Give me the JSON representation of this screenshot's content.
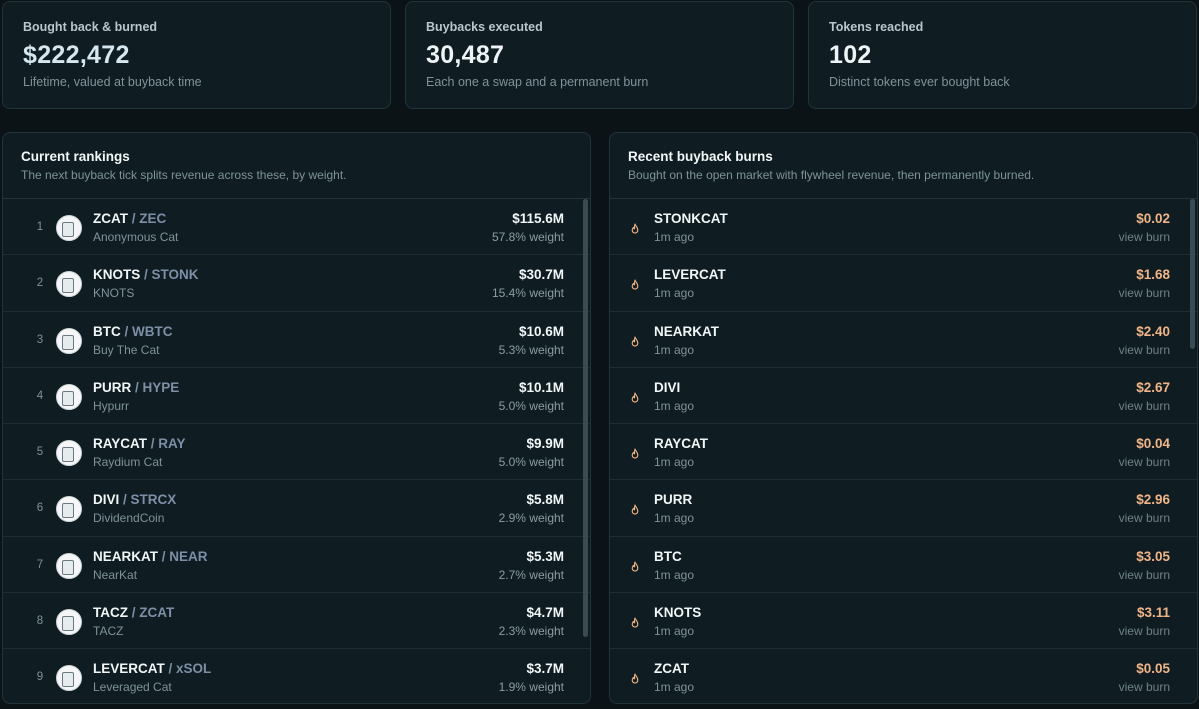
{
  "stats": [
    {
      "label": "Bought back & burned",
      "value": "$222,472",
      "sub": "Lifetime, valued at buyback time"
    },
    {
      "label": "Buybacks executed",
      "value": "30,487",
      "sub": "Each one a swap and a permanent burn"
    },
    {
      "label": "Tokens reached",
      "value": "102",
      "sub": "Distinct tokens ever bought back"
    }
  ],
  "rankings": {
    "title": "Current rankings",
    "subtitle": "The next buyback tick splits revenue across these, by weight.",
    "rows": [
      {
        "rank": "1",
        "symbol": "ZCAT",
        "pair": "/ ZEC",
        "name": "Anonymous Cat",
        "amount": "$115.6M",
        "weight": "57.8% weight"
      },
      {
        "rank": "2",
        "symbol": "KNOTS",
        "pair": "/ STONK",
        "name": "KNOTS",
        "amount": "$30.7M",
        "weight": "15.4% weight"
      },
      {
        "rank": "3",
        "symbol": "BTC",
        "pair": "/ WBTC",
        "name": "Buy The Cat",
        "amount": "$10.6M",
        "weight": "5.3% weight"
      },
      {
        "rank": "4",
        "symbol": "PURR",
        "pair": "/ HYPE",
        "name": "Hypurr",
        "amount": "$10.1M",
        "weight": "5.0% weight"
      },
      {
        "rank": "5",
        "symbol": "RAYCAT",
        "pair": "/ RAY",
        "name": "Raydium Cat",
        "amount": "$9.9M",
        "weight": "5.0% weight"
      },
      {
        "rank": "6",
        "symbol": "DIVI",
        "pair": "/ STRCX",
        "name": "DividendCoin",
        "amount": "$5.8M",
        "weight": "2.9% weight"
      },
      {
        "rank": "7",
        "symbol": "NEARKAT",
        "pair": "/ NEAR",
        "name": "NearKat",
        "amount": "$5.3M",
        "weight": "2.7% weight"
      },
      {
        "rank": "8",
        "symbol": "TACZ",
        "pair": "/ ZCAT",
        "name": "TACZ",
        "amount": "$4.7M",
        "weight": "2.3% weight"
      },
      {
        "rank": "9",
        "symbol": "LEVERCAT",
        "pair": "/ xSOL",
        "name": "Leveraged Cat",
        "amount": "$3.7M",
        "weight": "1.9% weight"
      }
    ]
  },
  "burns": {
    "title": "Recent buyback burns",
    "subtitle": "Bought on the open market with flywheel revenue, then permanently burned.",
    "rows": [
      {
        "symbol": "STONKCAT",
        "ago": "1m ago",
        "amount": "$0.02",
        "link": "view burn"
      },
      {
        "symbol": "LEVERCAT",
        "ago": "1m ago",
        "amount": "$1.68",
        "link": "view burn"
      },
      {
        "symbol": "NEARKAT",
        "ago": "1m ago",
        "amount": "$2.40",
        "link": "view burn"
      },
      {
        "symbol": "DIVI",
        "ago": "1m ago",
        "amount": "$2.67",
        "link": "view burn"
      },
      {
        "symbol": "RAYCAT",
        "ago": "1m ago",
        "amount": "$0.04",
        "link": "view burn"
      },
      {
        "symbol": "PURR",
        "ago": "1m ago",
        "amount": "$2.96",
        "link": "view burn"
      },
      {
        "symbol": "BTC",
        "ago": "1m ago",
        "amount": "$3.05",
        "link": "view burn"
      },
      {
        "symbol": "KNOTS",
        "ago": "1m ago",
        "amount": "$3.11",
        "link": "view burn"
      },
      {
        "symbol": "ZCAT",
        "ago": "1m ago",
        "amount": "$0.05",
        "link": "view burn"
      }
    ]
  },
  "colors": {
    "accent_burn": "#f0b487",
    "pair_text": "#7d8ea6",
    "panel_bg": "#0f1d22"
  },
  "icons": {
    "burn": "flame-icon",
    "token": "token-avatar-icon"
  }
}
